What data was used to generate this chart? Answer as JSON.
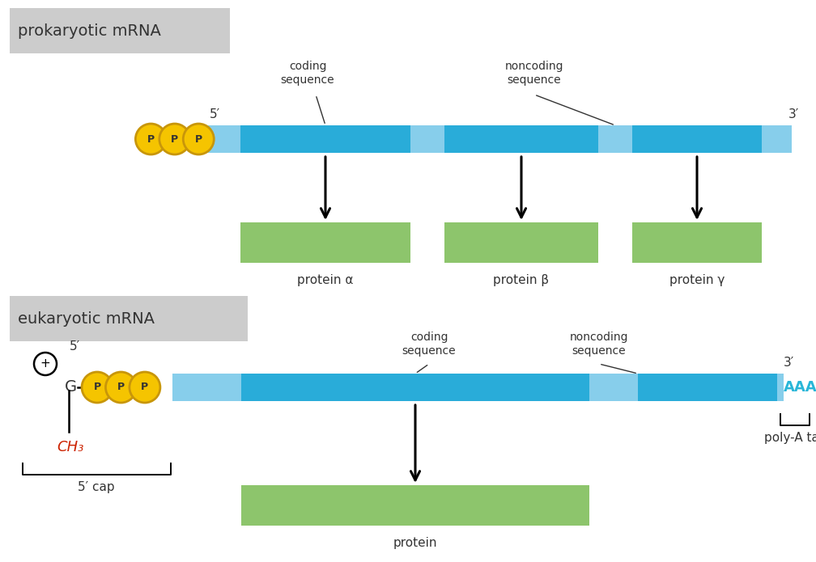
{
  "bg_color": "#ffffff",
  "label_box_color": "#c8c8c8",
  "prokaryotic_label": "prokaryotic mRNA",
  "eukaryotic_label": "eukaryotic mRNA",
  "light_blue": "#87ceeb",
  "dark_blue": "#29acd9",
  "green": "#8dc56c",
  "yellow": "#f5c400",
  "yellow_border": "#c8960a",
  "red": "#cc2200",
  "cyan_text": "#29b6d8",
  "text_color": "#333333",
  "protein_alpha": "protein α",
  "protein_beta": "protein β",
  "protein_gamma": "protein γ",
  "protein_label": "protein",
  "poly_a_label": "poly-A tail",
  "cap_label": "5′ cap",
  "five_prime": "5′",
  "three_prime": "3′"
}
